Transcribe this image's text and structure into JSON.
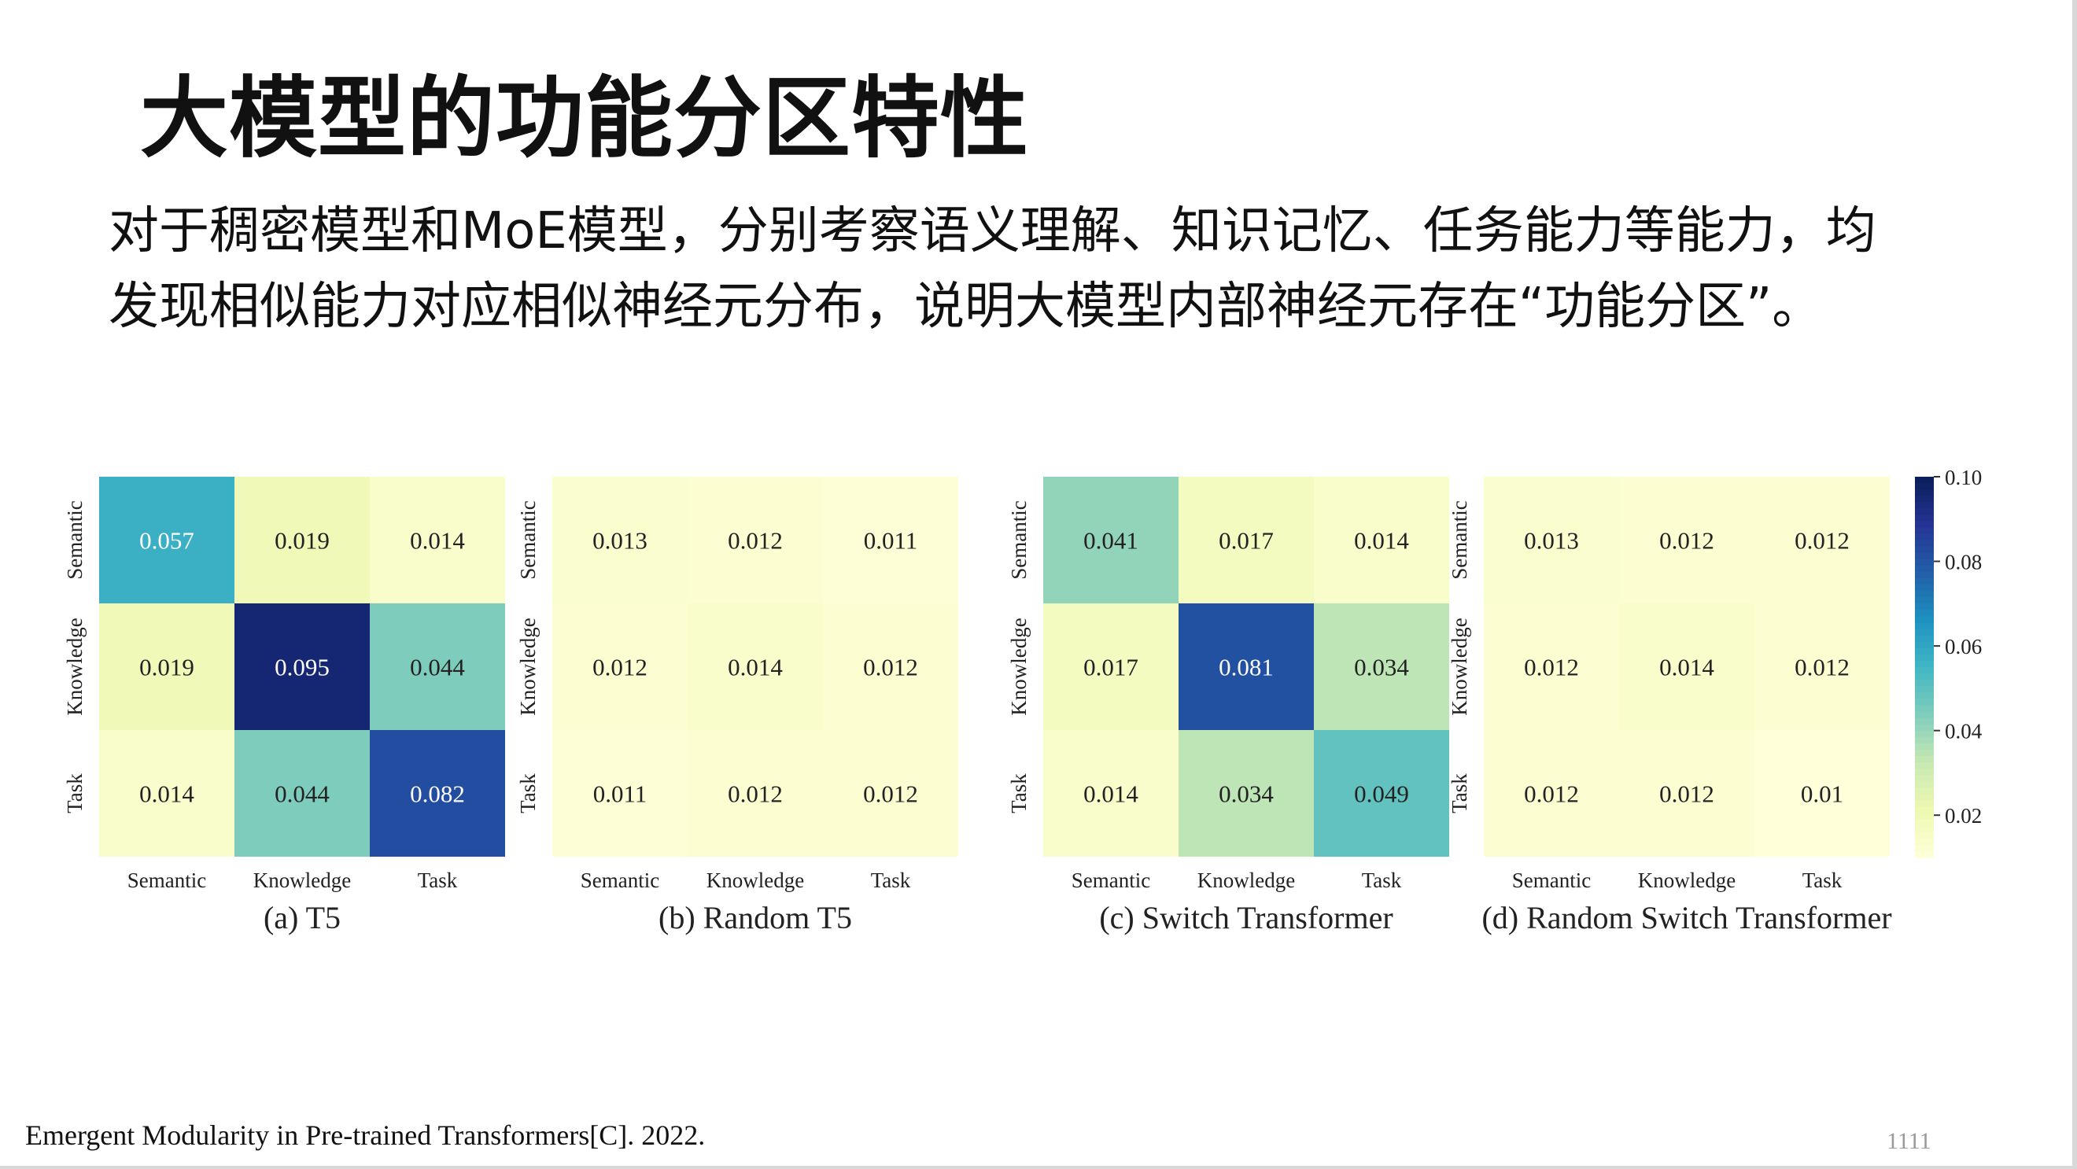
{
  "slide": {
    "title": "大模型的功能分区特性",
    "description_lines": [
      "对于稠密模型和MoE模型，分别考察语义理解、知识记忆、任务能力等能力，均",
      "发现相似能力对应相似神经元分布，说明大模型内部神经元存在“功能分区”。"
    ],
    "reference": "Emergent Modularity in Pre-trained Transformers[C]. 2022.",
    "page_number": "11",
    "page_number_sub": "11"
  },
  "chart_data": [
    {
      "type": "heatmap",
      "caption": "(a) T5",
      "x_categories": [
        "Semantic",
        "Knowledge",
        "Task"
      ],
      "y_categories": [
        "Semantic",
        "Knowledge",
        "Task"
      ],
      "values": [
        [
          0.057,
          0.019,
          0.014
        ],
        [
          0.019,
          0.095,
          0.044
        ],
        [
          0.014,
          0.044,
          0.082
        ]
      ],
      "labels": [
        [
          "0.057",
          "0.019",
          "0.014"
        ],
        [
          "0.019",
          "0.095",
          "0.044"
        ],
        [
          "0.014",
          "0.044",
          "0.082"
        ]
      ]
    },
    {
      "type": "heatmap",
      "caption": "(b) Random T5",
      "x_categories": [
        "Semantic",
        "Knowledge",
        "Task"
      ],
      "y_categories": [
        "Semantic",
        "Knowledge",
        "Task"
      ],
      "values": [
        [
          0.013,
          0.012,
          0.011
        ],
        [
          0.012,
          0.014,
          0.012
        ],
        [
          0.011,
          0.012,
          0.012
        ]
      ],
      "labels": [
        [
          "0.013",
          "0.012",
          "0.011"
        ],
        [
          "0.012",
          "0.014",
          "0.012"
        ],
        [
          "0.011",
          "0.012",
          "0.012"
        ]
      ]
    },
    {
      "type": "heatmap",
      "caption": "(c) Switch Transformer",
      "x_categories": [
        "Semantic",
        "Knowledge",
        "Task"
      ],
      "y_categories": [
        "Semantic",
        "Knowledge",
        "Task"
      ],
      "values": [
        [
          0.041,
          0.017,
          0.014
        ],
        [
          0.017,
          0.081,
          0.034
        ],
        [
          0.014,
          0.034,
          0.049
        ]
      ],
      "labels": [
        [
          "0.041",
          "0.017",
          "0.014"
        ],
        [
          "0.017",
          "0.081",
          "0.034"
        ],
        [
          "0.014",
          "0.034",
          "0.049"
        ]
      ]
    },
    {
      "type": "heatmap",
      "caption": "(d) Random Switch Transformer",
      "x_categories": [
        "Semantic",
        "Knowledge",
        "Task"
      ],
      "y_categories": [
        "Semantic",
        "Knowledge",
        "Task"
      ],
      "values": [
        [
          0.013,
          0.012,
          0.012
        ],
        [
          0.012,
          0.014,
          0.012
        ],
        [
          0.012,
          0.012,
          0.01
        ]
      ],
      "labels": [
        [
          "0.013",
          "0.012",
          "0.012"
        ],
        [
          "0.012",
          "0.014",
          "0.012"
        ],
        [
          "0.012",
          "0.012",
          "0.01"
        ]
      ]
    }
  ],
  "colorbar": {
    "colormap": "YlGnBu",
    "range": [
      0.01,
      0.1
    ],
    "ticks": [
      0.1,
      0.08,
      0.06,
      0.04,
      0.02
    ],
    "tick_labels": [
      "0.10",
      "0.08",
      "0.06",
      "0.04",
      "0.02"
    ]
  }
}
